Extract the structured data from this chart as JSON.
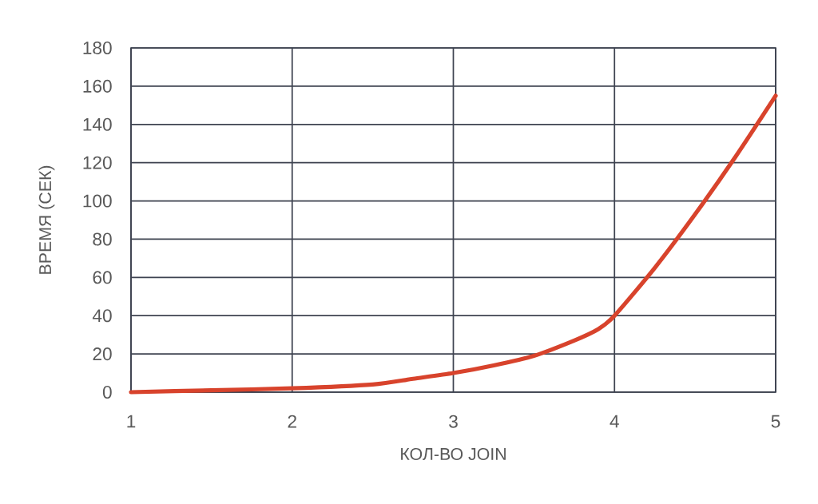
{
  "chart_data": {
    "type": "line",
    "xlabel": "КОЛ-ВО JOIN",
    "ylabel": "ВРЕМЯ (СЕК)",
    "x": [
      1,
      1.5,
      2,
      2.5,
      2.75,
      3,
      3.25,
      3.5,
      3.75,
      3.9,
      4,
      4.25,
      4.5,
      4.75,
      5
    ],
    "series": [
      {
        "color": "#d8432c",
        "values": [
          0,
          1,
          2,
          4,
          7,
          10,
          14,
          19,
          27,
          33,
          40,
          65,
          93,
          123,
          155
        ]
      }
    ],
    "xlim": [
      1,
      5
    ],
    "ylim": [
      0,
      180
    ],
    "xticks": [
      1,
      2,
      3,
      4,
      5
    ],
    "yticks": [
      0,
      20,
      40,
      60,
      80,
      100,
      120,
      140,
      160,
      180
    ],
    "grid": true,
    "marker": "none",
    "line_style": "solid"
  }
}
